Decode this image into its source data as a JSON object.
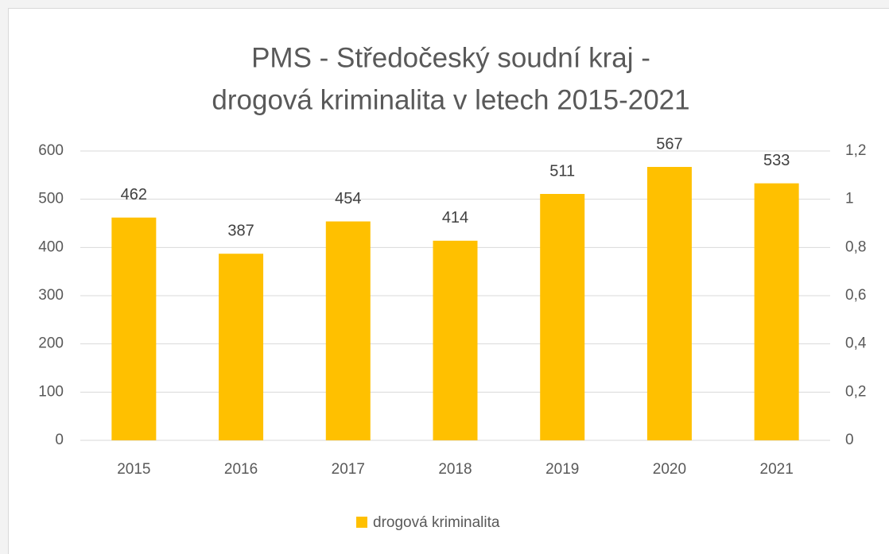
{
  "chart_data": {
    "type": "bar",
    "title": [
      "PMS - Středočeský soudní kraj -",
      "drogová kriminalita v letech 2015-2021"
    ],
    "categories": [
      "2015",
      "2016",
      "2017",
      "2018",
      "2019",
      "2020",
      "2021"
    ],
    "series": [
      {
        "name": "drogová kriminalita",
        "color": "#ffc000",
        "values": [
          462,
          387,
          454,
          414,
          511,
          567,
          533
        ]
      }
    ],
    "ylim": [
      0,
      600
    ],
    "yticks": [
      0,
      100,
      200,
      300,
      400,
      500,
      600
    ],
    "y2lim": [
      0,
      1.2
    ],
    "y2ticks": [
      0,
      {
        "value": 0.2,
        "label": "0,2"
      },
      {
        "value": 0.4,
        "label": "0,4"
      },
      {
        "value": 0.6,
        "label": "0,6"
      },
      {
        "value": 0.8,
        "label": "0,8"
      },
      1,
      {
        "value": 1.2,
        "label": "1,2"
      }
    ],
    "grid": true,
    "legend": "bottom"
  }
}
